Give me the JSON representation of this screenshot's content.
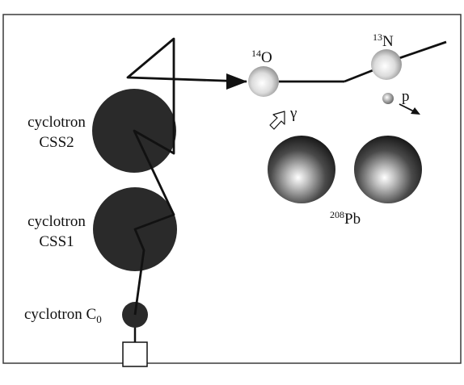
{
  "labels": {
    "css2_line1": "cyclotron",
    "css2_line2": "CSS2",
    "css1_line1": "cyclotron",
    "css1_line2": "CSS1",
    "c0_text": "cyclotron C",
    "c0_sub": "0",
    "o14_mass": "14",
    "o14_symbol": "O",
    "n13_mass": "13",
    "n13_symbol": "N",
    "proton": "p",
    "gamma": "γ",
    "pb_mass": "208",
    "pb_symbol": "Pb"
  },
  "colors": {
    "frame": "#3a3a3a",
    "cyclotron": "#2a2a2a",
    "beam": "#111111",
    "light_ion": "#d8d8d8",
    "target": "#3a3a3a",
    "background": "#ffffff"
  }
}
